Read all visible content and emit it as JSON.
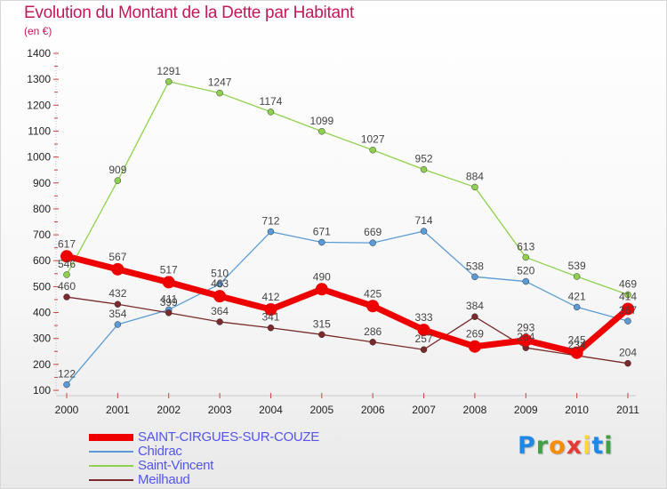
{
  "title": "Evolution du Montant de la Dette par Habitant",
  "subtitle": "(en €)",
  "logo": {
    "text": "Proxiti",
    "letters": [
      {
        "ch": "P",
        "color": "#1e88e5"
      },
      {
        "ch": "r",
        "color": "#43a047"
      },
      {
        "ch": "o",
        "color": "#fb8c00"
      },
      {
        "ch": "x",
        "color": "#e53935"
      },
      {
        "ch": "i",
        "color": "#fdd835"
      },
      {
        "ch": "t",
        "color": "#1e88e5"
      },
      {
        "ch": "i",
        "color": "#43a047"
      }
    ]
  },
  "chart_data": {
    "type": "line",
    "title": "Evolution du Montant de la Dette par Habitant",
    "subtitle": "(en €)",
    "xlabel": "",
    "ylabel": "",
    "x": [
      "2000",
      "2001",
      "2002",
      "2003",
      "2004",
      "2005",
      "2006",
      "2007",
      "2008",
      "2009",
      "2010",
      "2011"
    ],
    "ylim": [
      100,
      1400
    ],
    "yticks": [
      100,
      200,
      300,
      400,
      500,
      600,
      700,
      800,
      900,
      1000,
      1100,
      1200,
      1300,
      1400
    ],
    "grid": false,
    "legend_position": "bottom-left",
    "series": [
      {
        "name": "SAINT-CIRGUES-SUR-COUZE",
        "color": "#ee0000",
        "label_color": "#5555ee",
        "width": 7,
        "marker": 7,
        "values": [
          617,
          567,
          517,
          463,
          412,
          490,
          425,
          333,
          269,
          293,
          245,
          414
        ]
      },
      {
        "name": "Chidrac",
        "color": "#5b9bd5",
        "label_color": "#5555ee",
        "width": 1.3,
        "marker": 3.5,
        "values": [
          122,
          354,
          411,
          510,
          712,
          671,
          669,
          714,
          538,
          520,
          421,
          367
        ]
      },
      {
        "name": "Saint-Vincent",
        "color": "#8fd14f",
        "label_color": "#5555ee",
        "width": 1.3,
        "marker": 3.5,
        "values": [
          546,
          909,
          1291,
          1247,
          1174,
          1099,
          1027,
          952,
          884,
          613,
          539,
          469
        ]
      },
      {
        "name": "Meilhaud",
        "color": "#7a2a2a",
        "label_color": "#5555ee",
        "width": 1.3,
        "marker": 3.5,
        "values": [
          460,
          432,
          399,
          364,
          341,
          315,
          286,
          257,
          384,
          264,
          234,
          204
        ]
      }
    ]
  }
}
